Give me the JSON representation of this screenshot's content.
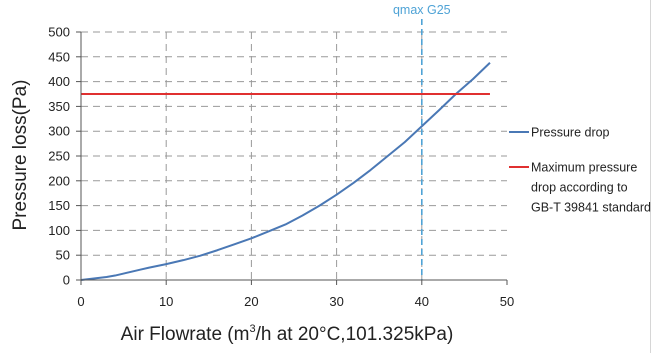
{
  "chart_data": {
    "type": "line",
    "xlabel_pre": "Air Flowrate (m",
    "xlabel_sup": "3",
    "xlabel_post": "/h at 20°C,101.325kPa)",
    "ylabel": "Pressure loss(Pa)",
    "xlim": [
      0,
      50
    ],
    "ylim": [
      0,
      500
    ],
    "x_ticks": [
      "0",
      "10",
      "20",
      "30",
      "40",
      "50"
    ],
    "y_ticks": [
      "0",
      "50",
      "100",
      "150",
      "200",
      "250",
      "300",
      "350",
      "400",
      "450",
      "500"
    ],
    "x_tick_values": [
      0,
      10,
      20,
      30,
      40,
      50
    ],
    "y_tick_values": [
      0,
      50,
      100,
      150,
      200,
      250,
      300,
      350,
      400,
      450,
      500
    ],
    "grid": true,
    "legend_position": "right",
    "series": [
      {
        "name": "Pressure drop",
        "color": "#4a78b5",
        "x": [
          0,
          1,
          2,
          3,
          4,
          5,
          6,
          7,
          8,
          10,
          12,
          14,
          16,
          18,
          20,
          22,
          24,
          26,
          28,
          30,
          32,
          34,
          36,
          38,
          40,
          42,
          44,
          46,
          48
        ],
        "y": [
          0,
          2,
          4,
          6,
          9,
          13,
          17,
          21,
          25,
          32,
          40,
          49,
          60,
          72,
          84,
          98,
          112,
          130,
          150,
          172,
          196,
          222,
          250,
          278,
          310,
          342,
          375,
          405,
          438
        ]
      },
      {
        "name": "Maximum pressure drop according to GB-T 39841 standard",
        "legend_lines": [
          "Maximum pressure",
          "drop according to",
          "GB-T 39841 standard"
        ],
        "color": "#e03030",
        "x": [
          0,
          48
        ],
        "y": [
          375,
          375
        ]
      }
    ],
    "annotations": [
      {
        "text": "qmax G25",
        "x": 40,
        "color": "#4fa3d6",
        "style": "dashed-vertical"
      }
    ]
  }
}
